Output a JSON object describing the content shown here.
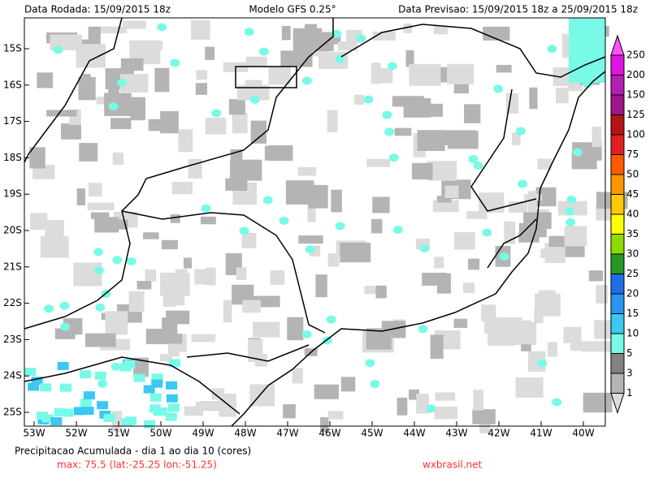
{
  "header": {
    "left": "Data Rodada: 15/09/2015 18z",
    "center": "Modelo GFS 0.25°",
    "right": "Data Previsao: 15/09/2015 18z a 25/09/2015 18z"
  },
  "lat_labels": [
    "15S",
    "16S",
    "17S",
    "18S",
    "19S",
    "20S",
    "21S",
    "22S",
    "23S",
    "24S",
    "25S"
  ],
  "lon_labels": [
    "53W",
    "52W",
    "51W",
    "50W",
    "49W",
    "48W",
    "47W",
    "46W",
    "45W",
    "44W",
    "43W",
    "42W",
    "41W",
    "40W"
  ],
  "colorbar": {
    "labels": [
      "250",
      "200",
      "150",
      "125",
      "100",
      "75",
      "50",
      "45",
      "40",
      "35",
      "30",
      "25",
      "20",
      "15",
      "10",
      "5",
      "3",
      "1"
    ],
    "colors": [
      "#ff50ff",
      "#e014e0",
      "#b41eb4",
      "#a0148c",
      "#b41414",
      "#e02020",
      "#ff5a00",
      "#ff9600",
      "#ffc800",
      "#ffff00",
      "#8cdc00",
      "#289628",
      "#1e6ee6",
      "#2896f0",
      "#3cc8f0",
      "#78fae6",
      "#828282",
      "#b4b4b4",
      "#dcdcdc"
    ]
  },
  "footer": {
    "title": "Precipitacao Acumulada - dia 1 ao dia 10 (cores)",
    "max": "max: 75.5 (lat:-25.25 lon:-51.25)",
    "site": "wxbrasil.net"
  }
}
